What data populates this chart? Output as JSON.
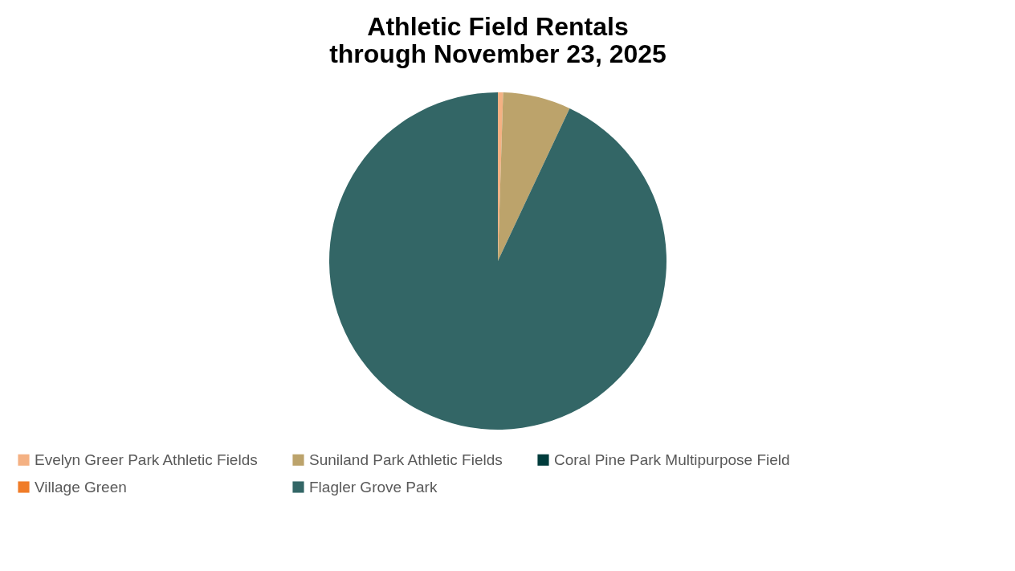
{
  "chart_data": {
    "type": "pie",
    "title": "Athletic Field Rentals\nthrough November 23, 2025",
    "categories": [
      "Evelyn Greer Park Athletic Fields",
      "Suniland Park Athletic Fields",
      "Coral Pine Park Multipurpose Field",
      "Village Green",
      "Flagler Grove Park"
    ],
    "values": [
      0.5,
      6.5,
      0,
      0,
      93
    ],
    "colors": [
      "#f4b183",
      "#bca36b",
      "#003c3c",
      "#f07c28",
      "#336666"
    ],
    "legend": "bottom"
  }
}
